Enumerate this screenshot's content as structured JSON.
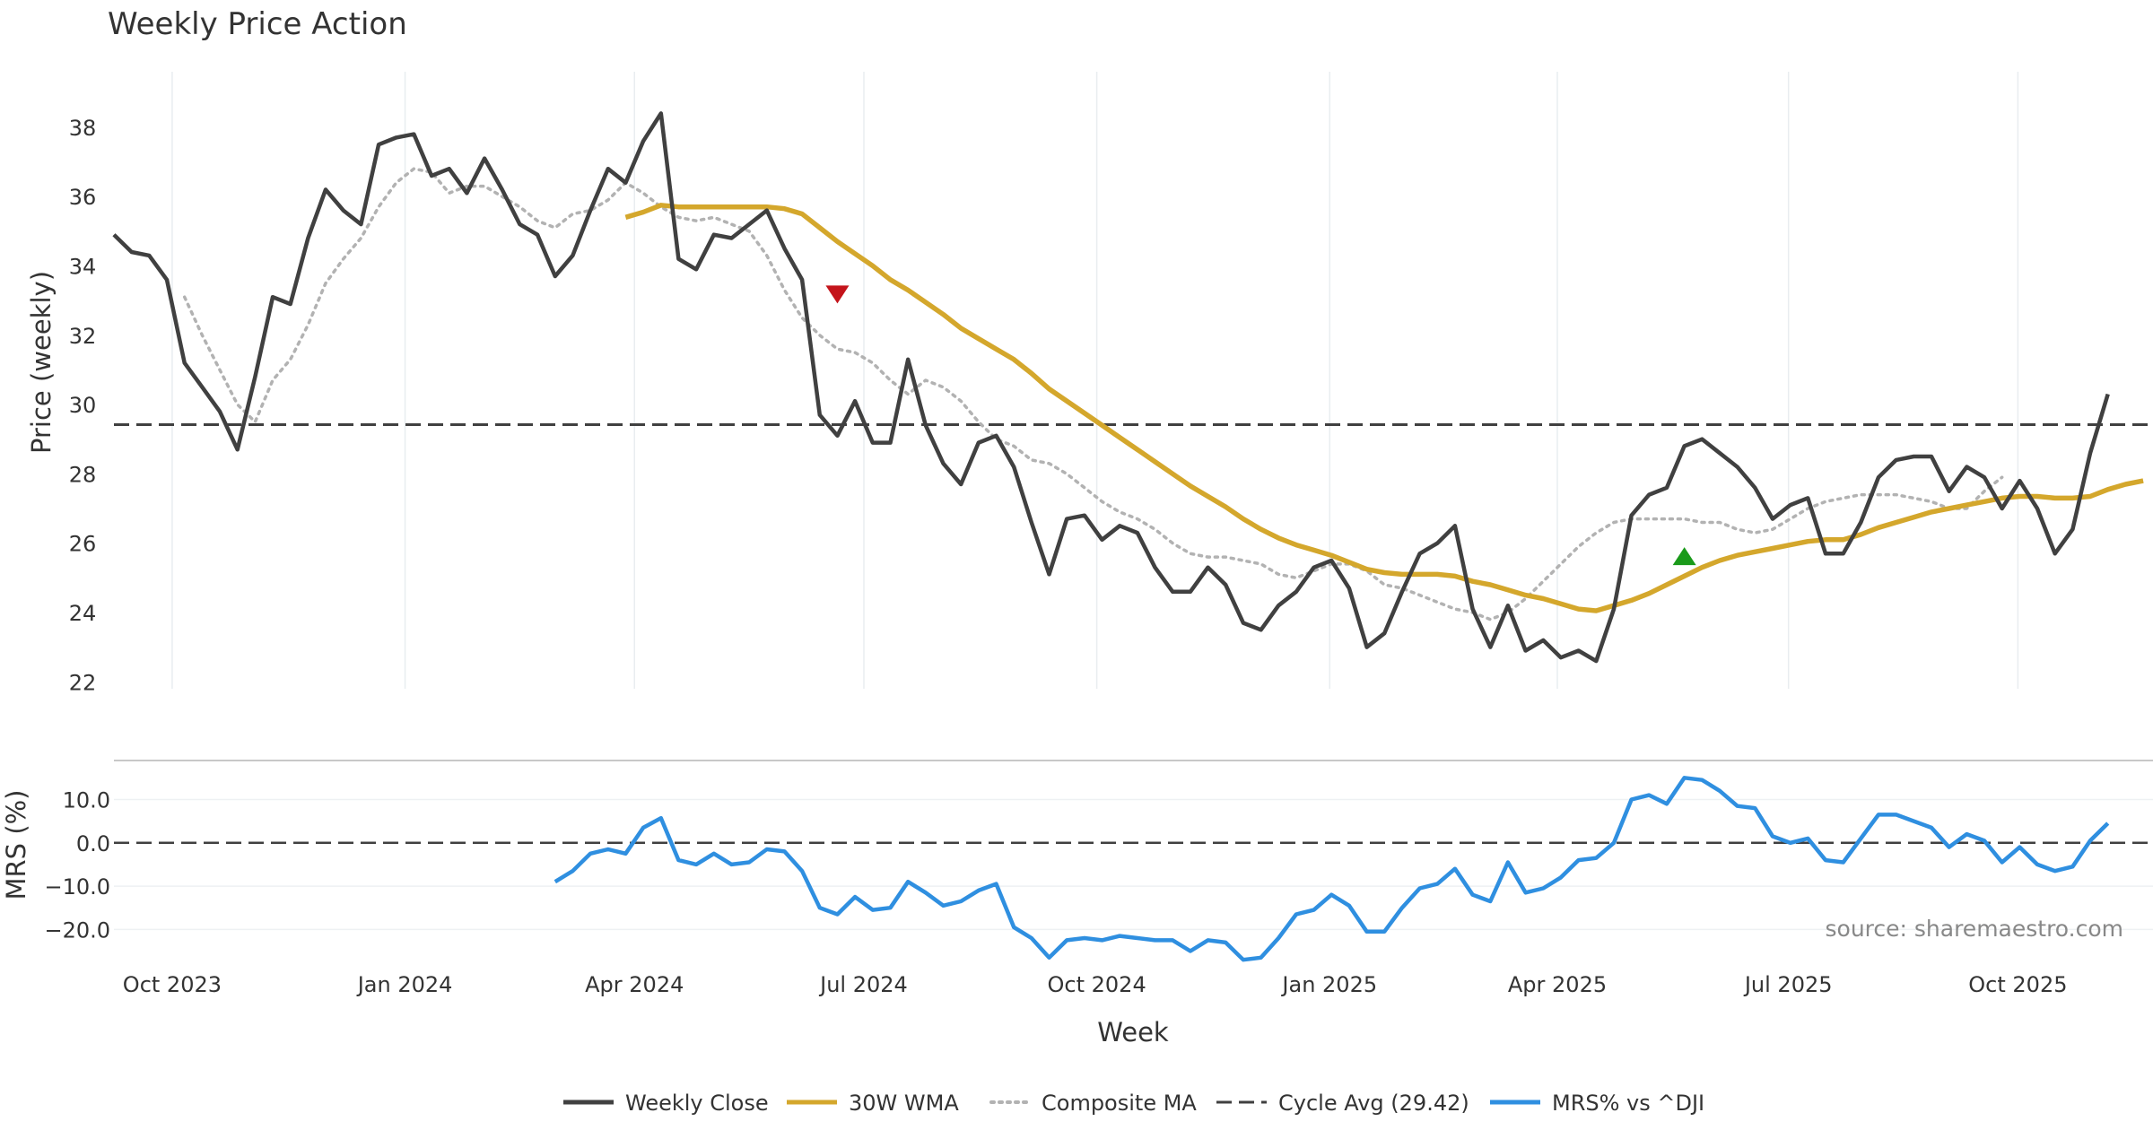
{
  "chart_data": {
    "type": "line",
    "title": "Weekly Price Action",
    "xlabel": "Week",
    "x_ticks": [
      "Oct 2023",
      "Jan 2024",
      "Apr 2024",
      "Jul 2024",
      "Oct 2024",
      "Jan 2025",
      "Apr 2025",
      "Jul 2025",
      "Oct 2025"
    ],
    "n_weeks": 118,
    "price_panel": {
      "ylabel": "Price (weekly)",
      "ylim": [
        21.8,
        39.6
      ],
      "y_ticks": [
        22,
        24,
        26,
        28,
        30,
        32,
        34,
        36,
        38
      ],
      "series": [
        {
          "name": "Weekly Close",
          "color": "#404040",
          "style": "solid",
          "start_index": 0,
          "values": [
            34.9,
            34.4,
            34.3,
            33.6,
            31.2,
            30.5,
            29.8,
            28.7,
            30.8,
            33.1,
            32.9,
            34.8,
            36.2,
            35.6,
            35.2,
            37.5,
            37.7,
            37.8,
            36.6,
            36.8,
            36.1,
            37.1,
            36.2,
            35.2,
            34.9,
            33.7,
            34.3,
            35.6,
            36.8,
            36.4,
            37.6,
            38.4,
            34.2,
            33.9,
            34.9,
            34.8,
            35.2,
            35.6,
            34.5,
            33.6,
            29.7,
            29.1,
            30.1,
            28.9,
            28.9,
            31.3,
            29.4,
            28.3,
            27.7,
            28.9,
            29.1,
            28.2,
            26.6,
            25.1,
            26.7,
            26.8,
            26.1,
            26.5,
            26.3,
            25.3,
            24.6,
            24.6,
            25.3,
            24.8,
            23.7,
            23.5,
            24.2,
            24.6,
            25.3,
            25.5,
            24.7,
            23.0,
            23.4,
            24.6,
            25.7,
            26.0,
            26.5,
            24.1,
            23.0,
            24.2,
            22.9,
            23.2,
            22.7,
            22.9,
            22.6,
            24.1,
            26.8,
            27.4,
            27.6,
            28.8,
            29.0,
            28.6,
            28.2,
            27.6,
            26.7,
            27.1,
            27.3,
            25.7,
            25.7,
            26.6,
            27.9,
            28.4,
            28.5,
            28.5,
            27.5,
            28.2,
            27.9,
            27.0,
            27.8,
            27.0,
            25.7,
            26.4,
            28.6,
            30.3
          ]
        },
        {
          "name": "30W WMA",
          "color": "#d4a72c",
          "style": "solid",
          "start_index": 29,
          "values": [
            35.4,
            35.55,
            35.75,
            35.7,
            35.7,
            35.7,
            35.7,
            35.7,
            35.7,
            35.65,
            35.5,
            35.1,
            34.7,
            34.35,
            34.0,
            33.6,
            33.3,
            32.95,
            32.6,
            32.2,
            31.9,
            31.6,
            31.3,
            30.9,
            30.45,
            30.1,
            29.75,
            29.4,
            29.05,
            28.7,
            28.35,
            28.0,
            27.65,
            27.35,
            27.05,
            26.7,
            26.4,
            26.15,
            25.95,
            25.8,
            25.65,
            25.45,
            25.25,
            25.15,
            25.1,
            25.1,
            25.1,
            25.05,
            24.9,
            24.8,
            24.65,
            24.5,
            24.4,
            24.25,
            24.1,
            24.05,
            24.2,
            24.35,
            24.55,
            24.8,
            25.05,
            25.3,
            25.5,
            25.65,
            25.75,
            25.85,
            25.95,
            26.05,
            26.1,
            26.1,
            26.25,
            26.45,
            26.6,
            26.75,
            26.9,
            27.0,
            27.1,
            27.2,
            27.3,
            27.35,
            27.35,
            27.3,
            27.3,
            27.35,
            27.55,
            27.7,
            27.8
          ]
        },
        {
          "name": "Composite MA",
          "color": "#b2b2b2",
          "style": "dotted",
          "start_index": 4,
          "values": [
            33.1,
            32.0,
            31.0,
            30.0,
            29.5,
            30.7,
            31.3,
            32.3,
            33.5,
            34.2,
            34.8,
            35.7,
            36.4,
            36.8,
            36.7,
            36.1,
            36.3,
            36.3,
            36.0,
            35.7,
            35.3,
            35.1,
            35.5,
            35.6,
            35.9,
            36.4,
            36.1,
            35.7,
            35.4,
            35.3,
            35.4,
            35.2,
            35.0,
            34.3,
            33.3,
            32.5,
            32.0,
            31.6,
            31.5,
            31.2,
            30.7,
            30.3,
            30.7,
            30.5,
            30.1,
            29.5,
            29.0,
            28.8,
            28.4,
            28.3,
            28.0,
            27.6,
            27.2,
            26.9,
            26.7,
            26.4,
            26.0,
            25.7,
            25.6,
            25.6,
            25.5,
            25.4,
            25.1,
            25.0,
            25.2,
            25.4,
            25.4,
            25.2,
            24.8,
            24.7,
            24.5,
            24.3,
            24.1,
            24.0,
            23.8,
            24.0,
            24.4,
            24.9,
            25.4,
            25.9,
            26.3,
            26.6,
            26.7,
            26.7,
            26.7,
            26.7,
            26.6,
            26.6,
            26.4,
            26.3,
            26.4,
            26.7,
            27.0,
            27.2,
            27.3,
            27.4,
            27.4,
            27.4,
            27.3,
            27.2,
            27.0,
            27.0,
            27.5,
            27.9
          ]
        }
      ],
      "cycle_avg": {
        "name": "Cycle Avg (29.42)",
        "value": 29.42,
        "color": "#404040",
        "style": "dashed"
      },
      "markers": [
        {
          "type": "sell",
          "shape": "triangle-down",
          "index": 41,
          "value": 33.2,
          "color": "#c4141b"
        },
        {
          "type": "buy",
          "shape": "triangle-up",
          "index": 89,
          "value": 25.6,
          "color": "#1a9a1a"
        }
      ]
    },
    "mrs_panel": {
      "ylabel": "MRS (%)",
      "ylim": [
        -28,
        19
      ],
      "y_ticks": [
        10.0,
        0.0,
        -10.0,
        -20.0
      ],
      "y_tick_labels": [
        "10.0",
        "0.0",
        "−10.0",
        "−20.0"
      ],
      "zero_line": 0,
      "series": [
        {
          "name": "MRS% vs ^DJI",
          "color": "#2f8fe0",
          "style": "solid",
          "start_index": 25,
          "values": [
            -9.0,
            -6.5,
            -2.5,
            -1.5,
            -2.5,
            3.5,
            5.7,
            -4.0,
            -5.0,
            -2.5,
            -5.0,
            -4.5,
            -1.5,
            -2.0,
            -6.5,
            -15.0,
            -16.5,
            -12.5,
            -15.5,
            -15.0,
            -9.0,
            -11.5,
            -14.5,
            -13.5,
            -11.0,
            -9.5,
            -19.5,
            -22.0,
            -26.5,
            -22.5,
            -22.0,
            -22.5,
            -21.5,
            -22.0,
            -22.5,
            -22.5,
            -25.0,
            -22.5,
            -23.0,
            -27.0,
            -26.5,
            -22.0,
            -16.5,
            -15.5,
            -12.0,
            -14.5,
            -20.5,
            -20.5,
            -15.0,
            -10.5,
            -9.5,
            -6.0,
            -12.0,
            -13.5,
            -4.5,
            -11.5,
            -10.5,
            -8.0,
            -4.0,
            -3.5,
            0.0,
            10.0,
            11.0,
            9.0,
            15.0,
            14.5,
            12.0,
            8.5,
            8.0,
            1.5,
            0.0,
            1.0,
            -4.0,
            -4.5,
            1.0,
            6.5,
            6.5,
            5.0,
            3.5,
            -1.0,
            2.0,
            0.5,
            -4.5,
            -1.0,
            -5.0,
            -6.5,
            -5.5,
            0.5,
            4.5
          ]
        }
      ]
    },
    "legend": {
      "position": "bottom-center",
      "entries": [
        "Weekly Close",
        "30W WMA",
        "Composite MA",
        "Cycle Avg (29.42)",
        "MRS% vs ^DJI"
      ]
    },
    "source": "source: sharemaestro.com"
  }
}
